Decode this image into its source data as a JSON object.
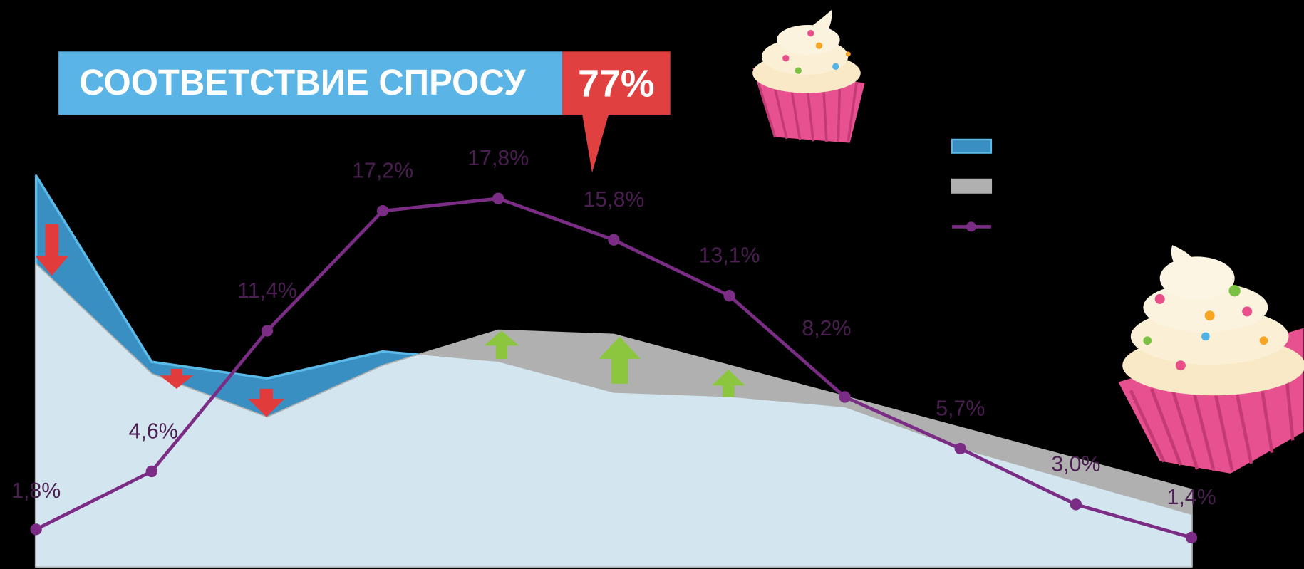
{
  "chart_data": {
    "type": "line",
    "title": "СООТВЕТСТВИЕ СПРОСУ",
    "annotation": "77%",
    "ylim": [
      0,
      27.4
    ],
    "series": [
      {
        "type": "area",
        "color": "#3a8fc2",
        "values": [
          18.9,
          9.9,
          9.1,
          10.4,
          9.9,
          8.4,
          8.2,
          7.7,
          5.7,
          4.1,
          2.5
        ]
      },
      {
        "type": "area",
        "color": "#b0b0b0",
        "values": [
          14.6,
          9.3,
          7.2,
          9.7,
          11.4,
          11.2,
          9.7,
          8.2,
          6.7,
          5.2,
          3.7
        ]
      },
      {
        "type": "line",
        "color": "#7b2d86",
        "values": [
          1.8,
          4.6,
          11.4,
          17.2,
          17.8,
          15.8,
          13.1,
          8.2,
          5.7,
          3.0,
          1.4
        ],
        "value_labels": [
          "1,8%",
          "4,6%",
          "11,4%",
          "17,2%",
          "17,8%",
          "15,8%",
          "13,1%",
          "8,2%",
          "5,7%",
          "3,0%",
          "1,4%"
        ]
      }
    ]
  }
}
